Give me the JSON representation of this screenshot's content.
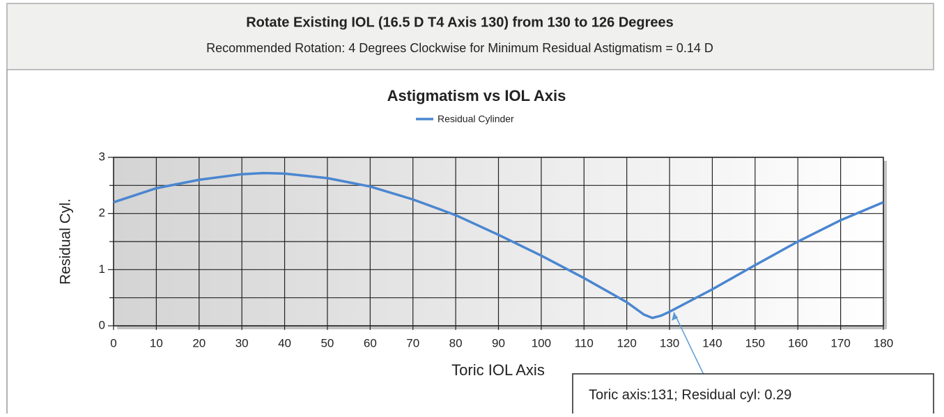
{
  "header": {
    "title": "Rotate Existing IOL (16.5 D T4 Axis 130) from 130 to 126 Degrees",
    "subtitle": "Recommended Rotation: 4 Degrees Clockwise for Minimum Residual Astigmatism = 0.14 D"
  },
  "chart_data": {
    "type": "line",
    "title": "Astigmatism vs  IOL Axis",
    "x_label": "Toric IOL Axis",
    "y_label": "Residual Cyl.",
    "x": [
      0,
      10,
      20,
      30,
      35,
      40,
      50,
      60,
      70,
      80,
      90,
      100,
      110,
      120,
      124,
      126,
      128,
      130,
      140,
      150,
      160,
      170,
      180
    ],
    "series": [
      {
        "name": "Residual Cylinder",
        "color": "#4a86d0",
        "values": [
          2.2,
          2.45,
          2.6,
          2.7,
          2.72,
          2.71,
          2.63,
          2.48,
          2.25,
          1.97,
          1.62,
          1.25,
          0.85,
          0.42,
          0.2,
          0.14,
          0.18,
          0.25,
          0.65,
          1.08,
          1.5,
          1.88,
          2.2
        ]
      }
    ],
    "xlim": [
      0,
      180
    ],
    "xticks": [
      0,
      10,
      20,
      30,
      40,
      50,
      60,
      70,
      80,
      90,
      100,
      110,
      120,
      130,
      140,
      150,
      160,
      170,
      180
    ],
    "ylim": [
      0,
      3
    ],
    "yticks": [
      0,
      1,
      2,
      3
    ],
    "y_minor_ticks": [
      0.5,
      1.5,
      2.5
    ],
    "grid": true,
    "annotation": {
      "text": "Toric axis:131; Residual cyl: 0.29",
      "x": 131,
      "y": 0.29
    }
  }
}
